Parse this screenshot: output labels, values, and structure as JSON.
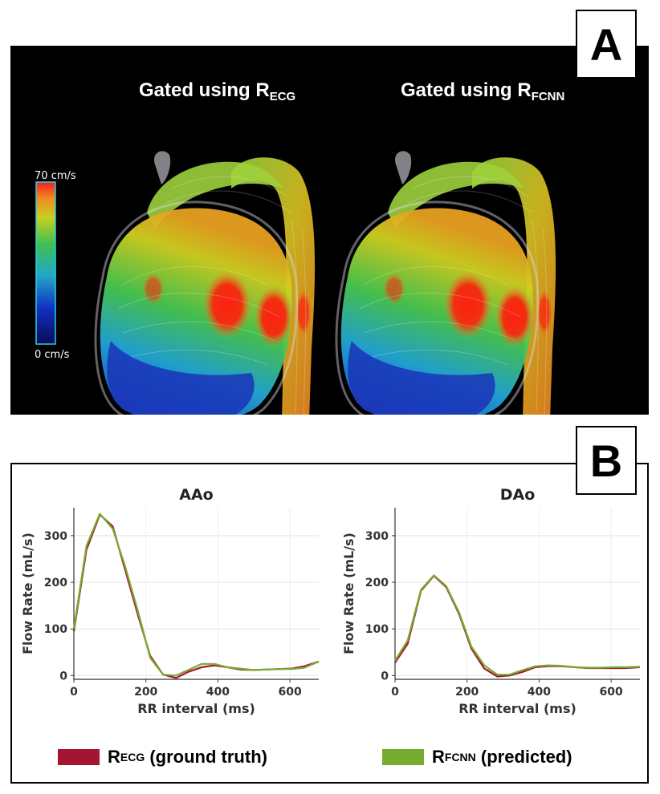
{
  "panel_a": {
    "label": "A",
    "titles": [
      {
        "prefix": "Gated using R",
        "subscript": "ECG"
      },
      {
        "prefix": "Gated using R",
        "subscript": "FCNN"
      }
    ],
    "colorbar": {
      "max_label": "70 cm/s",
      "min_label": "0 cm/s"
    }
  },
  "panel_b": {
    "label": "B"
  },
  "legend": [
    {
      "prefix": "R",
      "subscript": "ECG",
      "suffix": " (ground truth)",
      "color": "#a3162f"
    },
    {
      "prefix": "R",
      "subscript": "FCNN",
      "suffix": " (predicted)",
      "color": "#78ac2f"
    }
  ],
  "chart_data": [
    {
      "type": "line",
      "title": "AAo",
      "xlabel": "RR interval (ms)",
      "ylabel": "Flow Rate (mL/s)",
      "xlim": [
        0,
        680
      ],
      "ylim": [
        -8,
        360
      ],
      "xticks": [
        0,
        200,
        400,
        600
      ],
      "yticks": [
        0,
        100,
        200,
        300
      ],
      "grid": true,
      "series": [
        {
          "name": "RECG (ground truth)",
          "color": "#a3162f",
          "x": [
            0,
            35,
            72,
            108,
            142,
            178,
            212,
            248,
            284,
            318,
            355,
            390,
            426,
            462,
            498,
            535,
            570,
            605,
            640,
            680
          ],
          "values": [
            95,
            270,
            345,
            320,
            228,
            130,
            42,
            2,
            -5,
            8,
            18,
            22,
            18,
            13,
            12,
            13,
            14,
            15,
            20,
            30
          ]
        },
        {
          "name": "RFCNN (predicted)",
          "color": "#78ac2f",
          "x": [
            0,
            35,
            72,
            108,
            142,
            178,
            212,
            248,
            284,
            318,
            355,
            390,
            426,
            462,
            498,
            535,
            570,
            605,
            640,
            680
          ],
          "values": [
            100,
            278,
            347,
            315,
            235,
            138,
            38,
            2,
            0,
            12,
            25,
            25,
            18,
            15,
            12,
            13,
            14,
            14,
            17,
            30
          ]
        }
      ]
    },
    {
      "type": "line",
      "title": "DAo",
      "xlabel": "RR interval (ms)",
      "ylabel": "Flow Rate (mL/s)",
      "xlim": [
        0,
        680
      ],
      "ylim": [
        -8,
        360
      ],
      "xticks": [
        0,
        200,
        400,
        600
      ],
      "yticks": [
        0,
        100,
        200,
        300
      ],
      "grid": true,
      "series": [
        {
          "name": "RECG (ground truth)",
          "color": "#a3162f",
          "x": [
            0,
            35,
            72,
            108,
            142,
            178,
            212,
            248,
            284,
            318,
            355,
            390,
            426,
            462,
            498,
            535,
            570,
            605,
            640,
            680
          ],
          "values": [
            28,
            68,
            182,
            214,
            190,
            132,
            58,
            15,
            -2,
            0,
            8,
            18,
            20,
            20,
            18,
            16,
            16,
            16,
            16,
            18
          ]
        },
        {
          "name": "RFCNN (predicted)",
          "color": "#78ac2f",
          "x": [
            0,
            35,
            72,
            108,
            142,
            178,
            212,
            248,
            284,
            318,
            355,
            390,
            426,
            462,
            498,
            535,
            570,
            605,
            640,
            680
          ],
          "values": [
            32,
            75,
            184,
            215,
            192,
            135,
            62,
            22,
            2,
            2,
            12,
            20,
            22,
            21,
            18,
            17,
            17,
            18,
            18,
            19
          ]
        }
      ]
    }
  ]
}
